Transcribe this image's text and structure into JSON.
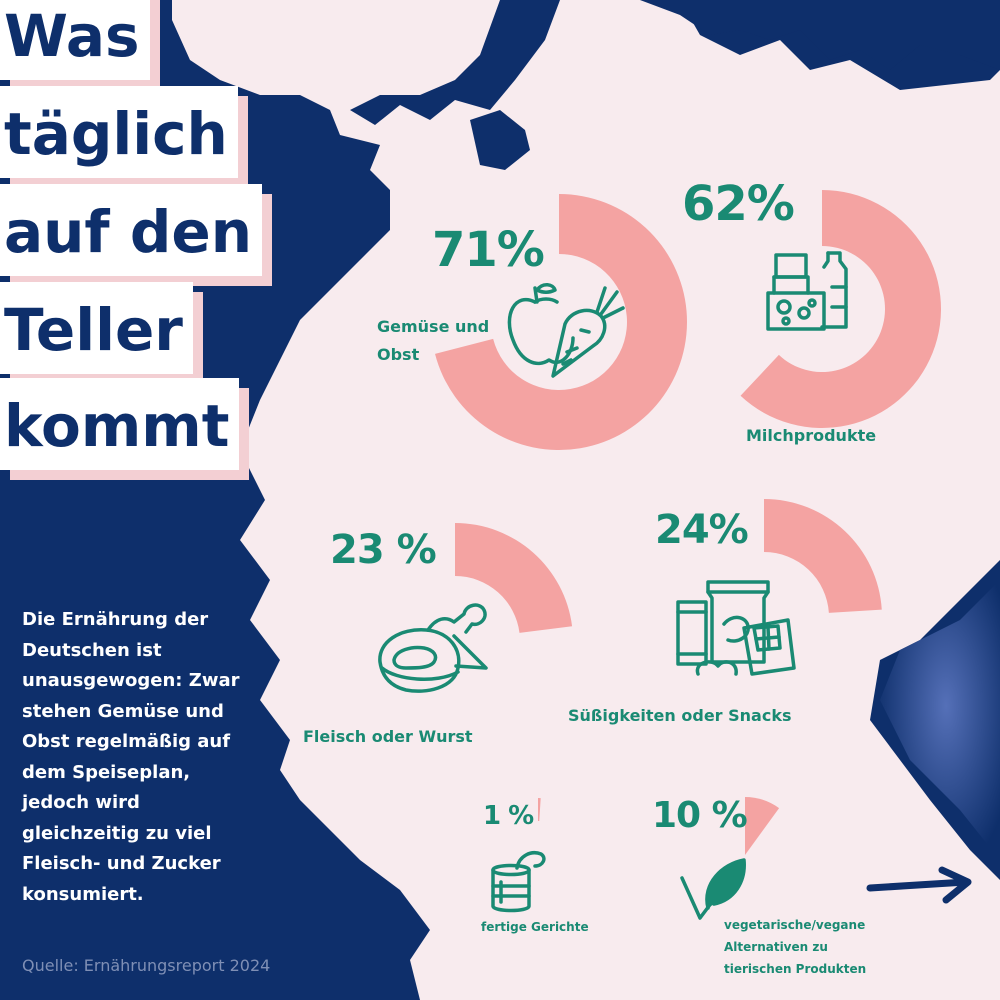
{
  "title_lines": [
    "Was",
    "täglich",
    "auf den",
    "Teller",
    "kommt"
  ],
  "intro_text": "Die Ernährung der Deutschen ist unausgewogen: Zwar stehen Gemüse und Obst regelmäßig auf dem Speiseplan, jedoch wird gleichzeitig zu viel Fleisch-  und Zucker konsumiert.",
  "source": "Quelle: Ernährungsreport 2024",
  "colors": {
    "background_navy": "#0e2f6b",
    "map_pink": "#f8ebee",
    "ring_salmon": "#f4a3a2",
    "text_green": "#1a8a73",
    "title_shadow": "#f3cfd3"
  },
  "chart_data": {
    "type": "pie",
    "categories": [
      "Gemüse und Obst",
      "Milchprodukte",
      "Fleisch oder Wurst",
      "Süßigkeiten oder Snacks",
      "fertige Gerichte",
      "vegetarische/vegane Alternativen zu tierischen Produkten"
    ],
    "values": [
      71,
      62,
      23,
      24,
      1,
      10
    ],
    "value_labels": [
      "71%",
      "62%",
      "23 %",
      "24%",
      "1 %",
      "10 %"
    ],
    "unit": "%",
    "items": [
      {
        "label": "Gemüse und Obst",
        "value": 71,
        "value_label": "71%",
        "icon": "apple-carrot-icon"
      },
      {
        "label": "Milchprodukte",
        "value": 62,
        "value_label": "62%",
        "icon": "dairy-icon"
      },
      {
        "label": "Fleisch oder Wurst",
        "value": 23,
        "value_label": "23 %",
        "icon": "meat-icon"
      },
      {
        "label": "Süßigkeiten oder Snacks",
        "value": 24,
        "value_label": "24%",
        "icon": "snacks-icon"
      },
      {
        "label": "fertige Gerichte",
        "value": 1,
        "value_label": "1 %",
        "icon": "can-icon"
      },
      {
        "label": "vegetarische/vegane Alternativen zu tierischen Produkten",
        "label_lines": [
          "vegetarische/vegane",
          "Alternativen zu",
          "tierischen Produkten"
        ],
        "value": 10,
        "value_label": "10 %",
        "icon": "leaf-icon"
      }
    ]
  }
}
